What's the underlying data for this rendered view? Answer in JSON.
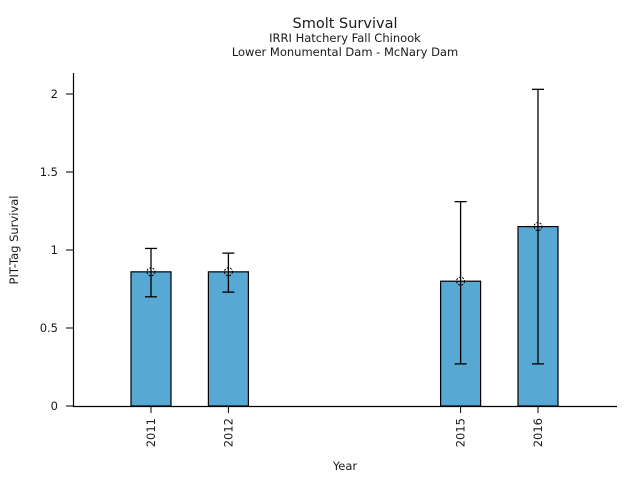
{
  "figure": {
    "background": "#ffffff"
  },
  "chart_data": {
    "type": "bar",
    "title": "Smolt Survival",
    "subtitle": [
      "IRRI Hatchery Fall Chinook",
      "Lower Monumental Dam - McNary Dam"
    ],
    "xlabel": "Year",
    "ylabel": "PIT-Tag Survival",
    "categories": [
      "2011",
      "2012",
      "2015",
      "2016"
    ],
    "x_numeric": [
      2011,
      2012,
      2015,
      2016
    ],
    "values": [
      0.86,
      0.86,
      0.8,
      1.15
    ],
    "error_low": [
      0.7,
      0.73,
      0.27,
      0.27
    ],
    "error_high": [
      1.01,
      0.98,
      1.31,
      2.03
    ],
    "marker": "open-dashed-circle",
    "yticks": [
      0,
      0.5,
      1,
      1.5,
      2
    ],
    "ytick_labels": [
      "0",
      "0.5",
      "1",
      "1.5",
      "2"
    ],
    "ylim": [
      0,
      2.13
    ],
    "xlim": [
      2010,
      2017
    ],
    "grid": false,
    "legend": false,
    "bar_color": "#57A8D3",
    "bar_edge_color": "#000000",
    "error_color": "#000000",
    "axis_color": "#000000",
    "text_color": "#1a1a1a"
  }
}
